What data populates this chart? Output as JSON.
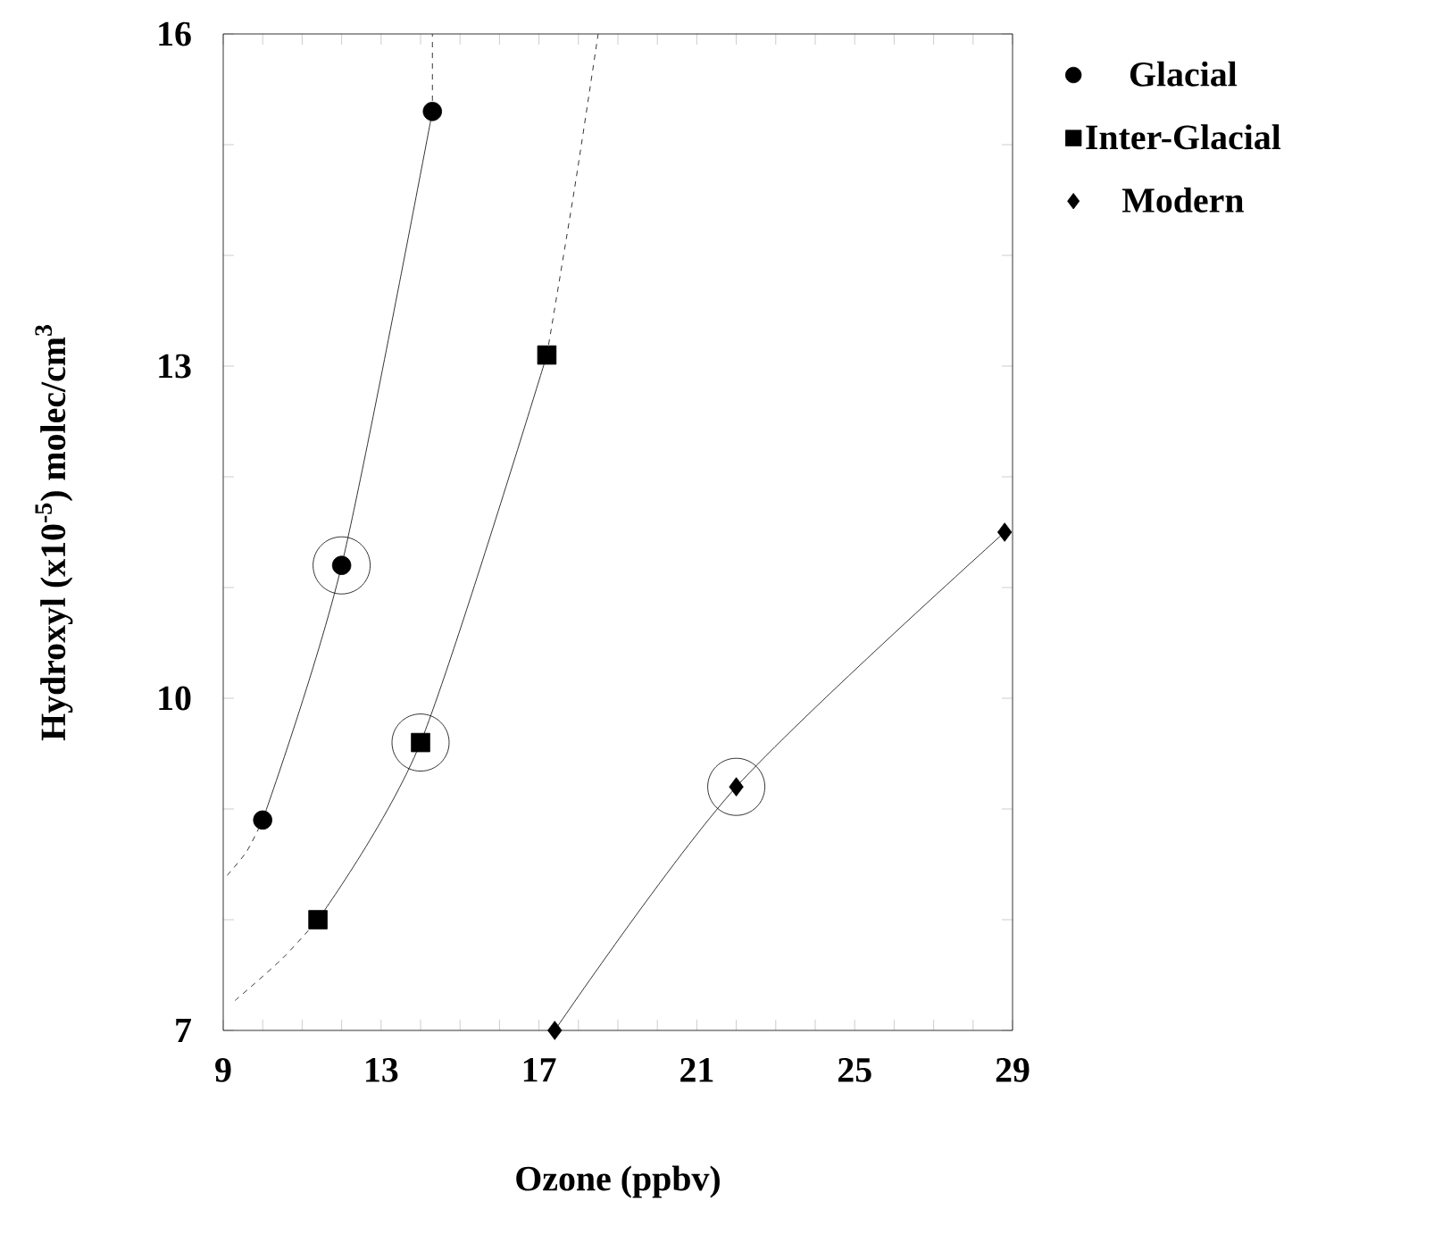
{
  "chart_data": {
    "type": "line",
    "xlabel": "Ozone (ppbv)",
    "ylabel": "Hydroxyl (x10$^{-5}$) molec/cm$^{3}$",
    "xlim": [
      9,
      29
    ],
    "ylim": [
      7,
      16
    ],
    "xticks": [
      9,
      {
        "value": 10,
        "label": null
      },
      {
        "value": 11,
        "label": null
      },
      {
        "value": 12,
        "label": null
      },
      13,
      {
        "value": 14,
        "label": null
      },
      {
        "value": 15,
        "label": null
      },
      {
        "value": 16,
        "label": null
      },
      17,
      {
        "value": 18,
        "label": null
      },
      {
        "value": 19,
        "label": null
      },
      {
        "value": 20,
        "label": null
      },
      21,
      {
        "value": 22,
        "label": null
      },
      {
        "value": 23,
        "label": null
      },
      {
        "value": 24,
        "label": null
      },
      25,
      {
        "value": 26,
        "label": null
      },
      {
        "value": 27,
        "label": null
      },
      {
        "value": 28,
        "label": null
      },
      29
    ],
    "yticks": [
      7,
      {
        "value": 8,
        "label": null
      },
      {
        "value": 9,
        "label": null
      },
      10,
      {
        "value": 11,
        "label": null
      },
      {
        "value": 12,
        "label": null
      },
      13,
      {
        "value": 14,
        "label": null
      },
      {
        "value": 15,
        "label": null
      },
      16
    ],
    "legend": "right",
    "series": [
      {
        "name": "Glacial",
        "color": "#000000",
        "marker": "circle",
        "x": [
          10,
          12,
          14.3
        ],
        "values": [
          8.9,
          11.2,
          15.3
        ]
      },
      {
        "name": "Inter-Glacial",
        "color": "#000000",
        "marker": "square",
        "x": [
          11.4,
          14,
          17.2
        ],
        "values": [
          8,
          9.6,
          13.1
        ]
      },
      {
        "name": "Modern",
        "color": "#000000",
        "marker": "diamond",
        "x": [
          17.4,
          22,
          28.8
        ],
        "values": [
          7,
          9.2,
          11.5
        ]
      },
      {
        "color": "#000000",
        "marker": "none",
        "line_style": "dashed",
        "x": [
          9.1,
          9.6,
          10
        ],
        "values": [
          8.4,
          8.62,
          8.9
        ]
      },
      {
        "color": "#000000",
        "marker": "none",
        "line_style": "dashed",
        "x": [
          14.3,
          14.3
        ],
        "values": [
          15.3,
          16
        ]
      },
      {
        "color": "#000000",
        "marker": "none",
        "line_style": "dashed",
        "x": [
          9.3,
          10.5,
          11.4
        ],
        "values": [
          7.27,
          7.65,
          8
        ]
      },
      {
        "color": "#000000",
        "marker": "none",
        "line_style": "dashed",
        "x": [
          17.2,
          17.9,
          18.5
        ],
        "values": [
          13.1,
          14.6,
          16
        ]
      },
      {
        "type": "scatter",
        "color": "#000000",
        "marker": "circle",
        "x": [
          12,
          14,
          22
        ],
        "values": [
          11.2,
          9.6,
          9.2
        ]
      }
    ]
  }
}
